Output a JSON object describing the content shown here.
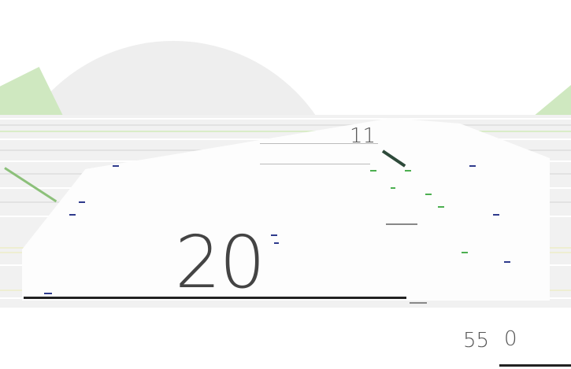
{
  "gauge": {
    "value": "20",
    "tick_labels": {
      "top": "11",
      "bottom_left": "55",
      "bottom_right": "0"
    }
  },
  "colors": {
    "dome": "#eeeeee",
    "band_green": "#cfe8c0",
    "accent_blue": "#2e3a8c",
    "text": "#444444"
  }
}
